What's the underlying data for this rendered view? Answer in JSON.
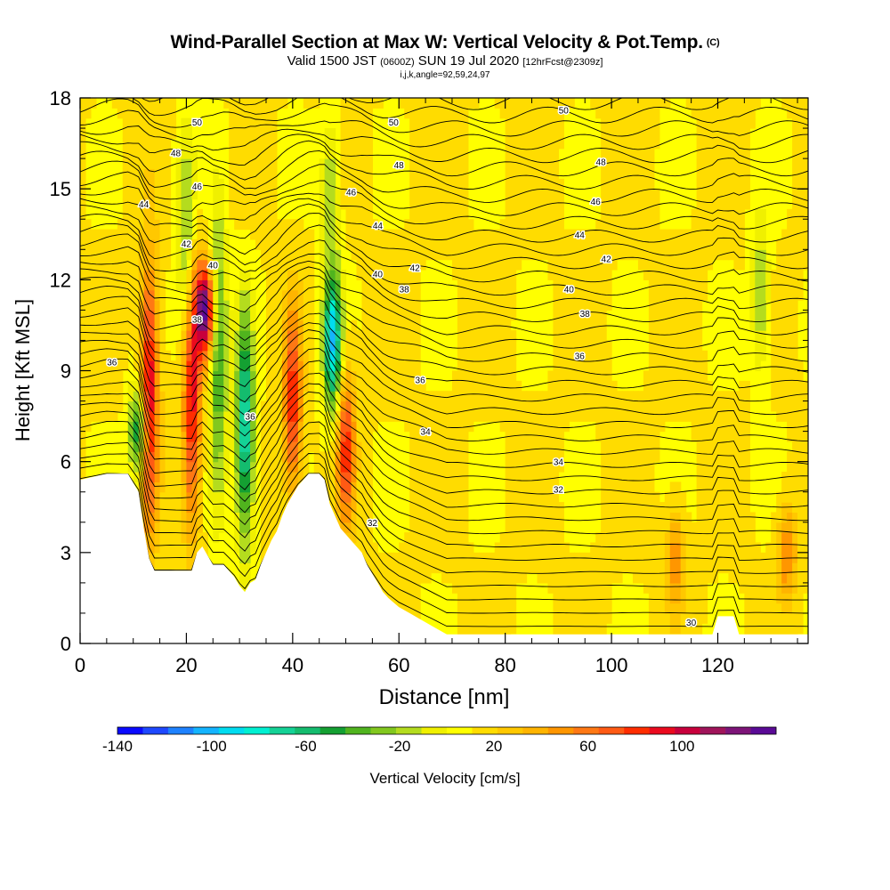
{
  "title": {
    "main": "Wind-Parallel Section at Max W: Vertical Velocity & Pot.Temp.",
    "copyright": "(C)",
    "valid_prefix": "Valid 1500 JST",
    "valid_zulu": "(0600Z)",
    "valid_date": "SUN 19 Jul 2020",
    "forecast": "[12hrFcst@2309z]",
    "grid_info": "i,j,k,angle=92,59,24,97"
  },
  "colors": {
    "velocity_scale": [
      "#0a0aff",
      "#1e48ff",
      "#1e82ff",
      "#14b4ff",
      "#00dcf0",
      "#00f0d2",
      "#14d296",
      "#14bc6e",
      "#14a032",
      "#50b41e",
      "#82c81e",
      "#b4dc1e",
      "#f0f000",
      "#ffff00",
      "#ffdc00",
      "#ffc800",
      "#ffb400",
      "#ff9600",
      "#ff7814",
      "#ff5a14",
      "#ff2d00",
      "#eb0a1e",
      "#c8003c",
      "#a0145a",
      "#7d1478",
      "#5a0a96"
    ],
    "land": "#ffffff",
    "contour_line": "#000000"
  },
  "chart_data": {
    "type": "heatmap",
    "xlabel": "Distance [nm]",
    "ylabel": "Height [Kft MSL]",
    "xlim": [
      0,
      137
    ],
    "ylim": [
      0,
      18
    ],
    "xticks": [
      0,
      20,
      40,
      60,
      80,
      100,
      120
    ],
    "yticks": [
      0,
      3,
      6,
      9,
      12,
      15,
      18
    ],
    "colorbar": {
      "label": "Vertical Velocity [cm/s]",
      "range": [
        -140,
        140
      ],
      "ticks": [
        -140,
        -100,
        -60,
        -20,
        20,
        60,
        100
      ]
    },
    "terrain_kft": [
      [
        0,
        5.4
      ],
      [
        5,
        5.6
      ],
      [
        9,
        5.6
      ],
      [
        10,
        5.3
      ],
      [
        11,
        5.0
      ],
      [
        12,
        3.8
      ],
      [
        13,
        2.8
      ],
      [
        14,
        2.4
      ],
      [
        16,
        2.4
      ],
      [
        18,
        2.4
      ],
      [
        20,
        2.4
      ],
      [
        21,
        2.4
      ],
      [
        22,
        3.0
      ],
      [
        23,
        3.2
      ],
      [
        24,
        2.9
      ],
      [
        25,
        2.6
      ],
      [
        27,
        2.6
      ],
      [
        28,
        2.4
      ],
      [
        29,
        2.2
      ],
      [
        30,
        1.9
      ],
      [
        31,
        1.7
      ],
      [
        32,
        2.0
      ],
      [
        33,
        2.1
      ],
      [
        34,
        2.6
      ],
      [
        35,
        3.0
      ],
      [
        36,
        3.4
      ],
      [
        37,
        3.7
      ],
      [
        38,
        4.2
      ],
      [
        39,
        4.6
      ],
      [
        40,
        4.9
      ],
      [
        41,
        5.2
      ],
      [
        42,
        5.4
      ],
      [
        43,
        5.6
      ],
      [
        44,
        5.6
      ],
      [
        45,
        5.6
      ],
      [
        46,
        5.4
      ],
      [
        47,
        4.6
      ],
      [
        48,
        4.2
      ],
      [
        49,
        3.8
      ],
      [
        50,
        3.6
      ],
      [
        51,
        3.4
      ],
      [
        52,
        3.2
      ],
      [
        53,
        3.0
      ],
      [
        54,
        2.6
      ],
      [
        55,
        2.3
      ],
      [
        56,
        2.0
      ],
      [
        57,
        1.7
      ],
      [
        58,
        1.5
      ],
      [
        60,
        1.2
      ],
      [
        62,
        1.0
      ],
      [
        64,
        0.8
      ],
      [
        66,
        0.6
      ],
      [
        68,
        0.4
      ],
      [
        69,
        0.3
      ],
      [
        70,
        0.3
      ],
      [
        118,
        0.3
      ],
      [
        119,
        0.3
      ],
      [
        120,
        0.9
      ],
      [
        123,
        0.9
      ],
      [
        124,
        0.3
      ],
      [
        137,
        0.3
      ]
    ],
    "theta_contours": [
      {
        "label": "30",
        "label_at": [
          115,
          0.7
        ]
      },
      {
        "label": "32",
        "label_at": [
          55,
          4.0
        ]
      },
      {
        "label": "32",
        "label_at": [
          90,
          5.1
        ]
      },
      {
        "label": "34",
        "label_at": [
          65,
          7.0
        ]
      },
      {
        "label": "34",
        "label_at": [
          90,
          6.0
        ]
      },
      {
        "label": "36",
        "label_at": [
          32,
          7.5
        ]
      },
      {
        "label": "36",
        "label_at": [
          6,
          9.3
        ]
      },
      {
        "label": "36",
        "label_at": [
          64,
          8.7
        ]
      },
      {
        "label": "36",
        "label_at": [
          94,
          9.5
        ]
      },
      {
        "label": "38",
        "label_at": [
          22,
          10.7
        ]
      },
      {
        "label": "38",
        "label_at": [
          61,
          11.7
        ]
      },
      {
        "label": "38",
        "label_at": [
          95,
          10.9
        ]
      },
      {
        "label": "40",
        "label_at": [
          25,
          12.5
        ]
      },
      {
        "label": "40",
        "label_at": [
          56,
          12.2
        ]
      },
      {
        "label": "40",
        "label_at": [
          92,
          11.7
        ]
      },
      {
        "label": "42",
        "label_at": [
          20,
          13.2
        ]
      },
      {
        "label": "42",
        "label_at": [
          63,
          12.4
        ]
      },
      {
        "label": "42",
        "label_at": [
          99,
          12.7
        ]
      },
      {
        "label": "44",
        "label_at": [
          12,
          14.5
        ]
      },
      {
        "label": "44",
        "label_at": [
          56,
          13.8
        ]
      },
      {
        "label": "44",
        "label_at": [
          94,
          13.5
        ]
      },
      {
        "label": "46",
        "label_at": [
          22,
          15.1
        ]
      },
      {
        "label": "46",
        "label_at": [
          51,
          14.9
        ]
      },
      {
        "label": "46",
        "label_at": [
          97,
          14.6
        ]
      },
      {
        "label": "48",
        "label_at": [
          18,
          16.2
        ]
      },
      {
        "label": "48",
        "label_at": [
          60,
          15.8
        ]
      },
      {
        "label": "48",
        "label_at": [
          98,
          15.9
        ]
      },
      {
        "label": "50",
        "label_at": [
          22,
          17.2
        ]
      },
      {
        "label": "50",
        "label_at": [
          59,
          17.2
        ]
      },
      {
        "label": "50",
        "label_at": [
          91,
          17.6
        ]
      }
    ],
    "velocity_features": [
      {
        "kind": "updraft",
        "x": 13,
        "y_range": [
          2.5,
          14
        ],
        "peak": 90
      },
      {
        "kind": "updraft",
        "x": 21,
        "y_range": [
          2.5,
          14
        ],
        "peak": 85
      },
      {
        "kind": "updraft",
        "x": 23.5,
        "y_range": [
          9,
          13
        ],
        "peak": 120
      },
      {
        "kind": "downdraft",
        "x": 11,
        "y_range": [
          5,
          9
        ],
        "peak": -80
      },
      {
        "kind": "downdraft",
        "x": 31,
        "y_range": [
          2,
          12
        ],
        "peak": -90
      },
      {
        "kind": "downdraft",
        "x": 26,
        "y_range": [
          3,
          16
        ],
        "peak": -55
      },
      {
        "kind": "updraft",
        "x": 40,
        "y_range": [
          4,
          12
        ],
        "peak": 75
      },
      {
        "kind": "downdraft",
        "x": 47.5,
        "y_range": [
          7,
          13
        ],
        "peak": -110
      },
      {
        "kind": "updraft",
        "x": 50,
        "y_range": [
          3,
          10
        ],
        "peak": 70
      },
      {
        "kind": "downdraft",
        "x": 20,
        "y_range": [
          8,
          18
        ],
        "peak": -45
      },
      {
        "kind": "downdraft",
        "x": 47,
        "y_range": [
          12,
          18
        ],
        "peak": -35
      },
      {
        "kind": "downdraft",
        "x": 128,
        "y_range": [
          8,
          15
        ],
        "peak": -35
      },
      {
        "kind": "updraft",
        "x": 133,
        "y_range": [
          1,
          5
        ],
        "peak": 45
      },
      {
        "kind": "updraft",
        "x": 112,
        "y_range": [
          0.5,
          5
        ],
        "peak": 40
      }
    ]
  }
}
